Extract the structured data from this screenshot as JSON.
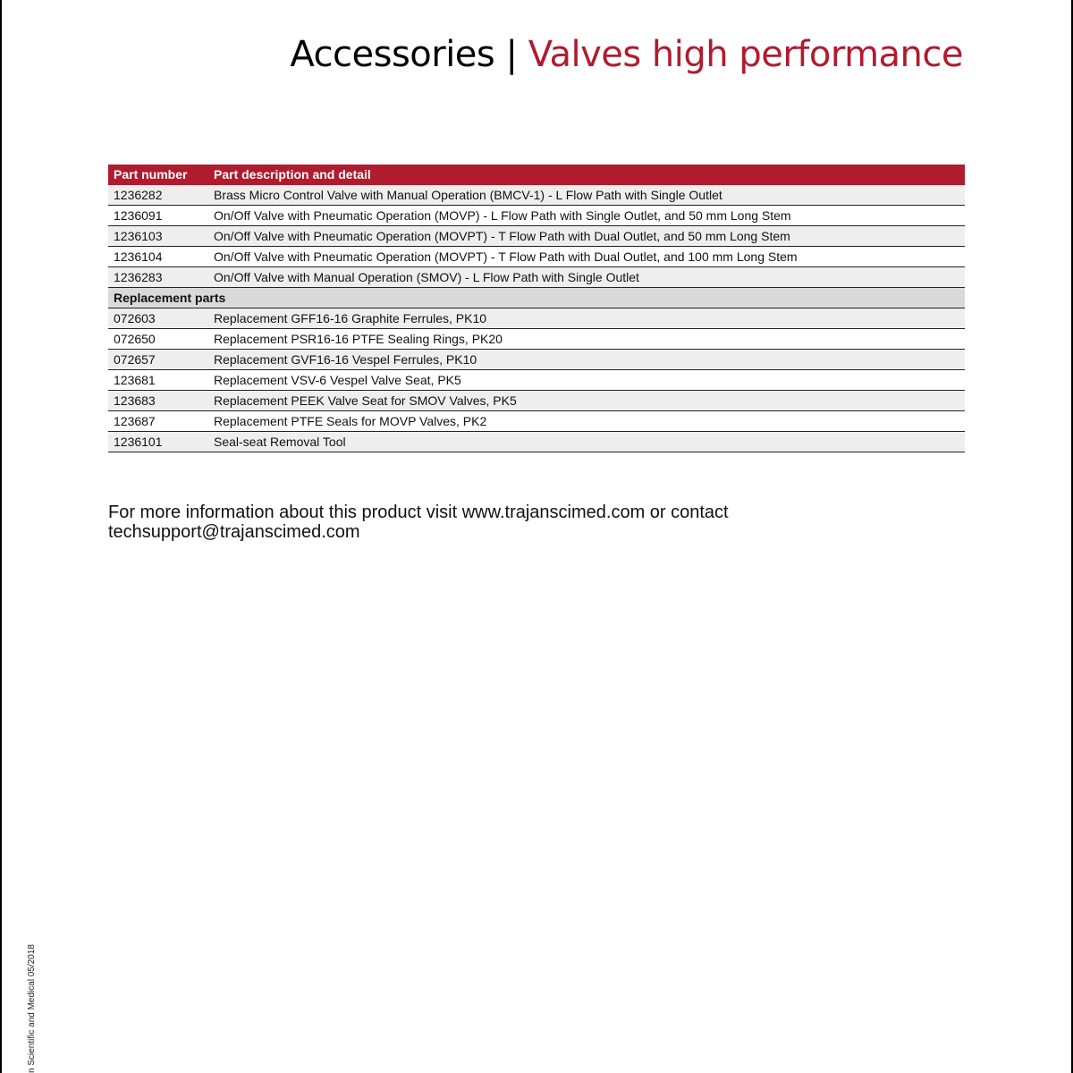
{
  "header": {
    "title_main": "Accessories",
    "separator": "|",
    "title_sub": "Valves high performance"
  },
  "table": {
    "columns": [
      "Part number",
      "Part description and detail"
    ],
    "rows": [
      [
        "1236282",
        "Brass Micro Control Valve with Manual Operation (BMCV-1) - L Flow Path with Single Outlet"
      ],
      [
        "1236091",
        "On/Off Valve with Pneumatic Operation (MOVP) - L Flow Path with Single Outlet, and 50 mm Long Stem"
      ],
      [
        "1236103",
        "On/Off Valve with Pneumatic Operation (MOVPT) - T Flow Path with Dual Outlet, and 50 mm Long Stem"
      ],
      [
        "1236104",
        "On/Off Valve with Pneumatic Operation (MOVPT) - T Flow Path with Dual Outlet, and 100 mm Long Stem"
      ],
      [
        "1236283",
        "On/Off Valve with Manual Operation (SMOV) - L Flow Path with Single Outlet"
      ]
    ],
    "section_title": "Replacement parts",
    "section_rows": [
      [
        "072603",
        "Replacement GFF16-16 Graphite Ferrules, PK10"
      ],
      [
        "072650",
        "Replacement PSR16-16 PTFE Sealing Rings, PK20"
      ],
      [
        "072657",
        "Replacement GVF16-16 Vespel Ferrules, PK10"
      ],
      [
        "123681",
        "Replacement VSV-6 Vespel Valve Seat, PK5"
      ],
      [
        "123683",
        "Replacement PEEK Valve Seat for SMOV Valves, PK5"
      ],
      [
        "123687",
        "Replacement PTFE Seals for MOVP Valves, PK2"
      ],
      [
        "1236101",
        "Seal-seat Removal Tool"
      ]
    ]
  },
  "footer": {
    "lines": [
      "For more information about this product visit www.trajanscimed.com or contact",
      "techsupport@trajanscimed.com"
    ]
  },
  "side_note": "n Scientific and Medical 05/2018"
}
